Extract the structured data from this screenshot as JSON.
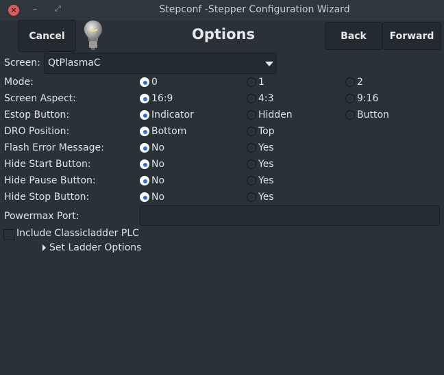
{
  "window": {
    "title": "Stepconf -Stepper Configuration Wizard"
  },
  "header": {
    "cancel": "Cancel",
    "heading": "Options",
    "back": "Back",
    "forward": "Forward"
  },
  "screen": {
    "label": "Screen:",
    "value": "QtPlasmaC"
  },
  "options": [
    {
      "label": "Mode:",
      "choices": [
        "0",
        "1",
        "2"
      ],
      "selected": 0
    },
    {
      "label": "Screen Aspect:",
      "choices": [
        "16:9",
        "4:3",
        "9:16"
      ],
      "selected": 0
    },
    {
      "label": "Estop Button:",
      "choices": [
        "Indicator",
        "Hidden",
        "Button"
      ],
      "selected": 0
    },
    {
      "label": "DRO Position:",
      "choices": [
        "Bottom",
        "Top"
      ],
      "selected": 0
    },
    {
      "label": "Flash Error Message:",
      "choices": [
        "No",
        "Yes"
      ],
      "selected": 0
    },
    {
      "label": "Hide Start Button:",
      "choices": [
        "No",
        "Yes"
      ],
      "selected": 0
    },
    {
      "label": "Hide Pause Button:",
      "choices": [
        "No",
        "Yes"
      ],
      "selected": 0
    },
    {
      "label": "Hide Stop Button:",
      "choices": [
        "No",
        "Yes"
      ],
      "selected": 0
    }
  ],
  "powermax": {
    "label": "Powermax Port:",
    "value": ""
  },
  "classicladder": {
    "label": "Include Classicladder PLC",
    "checked": false
  },
  "ladder_options": {
    "label": "Set Ladder Options",
    "expanded": false
  },
  "colors": {
    "accent": "#2a6ee0",
    "close": "#e05a5a",
    "background": "#2a3138"
  }
}
